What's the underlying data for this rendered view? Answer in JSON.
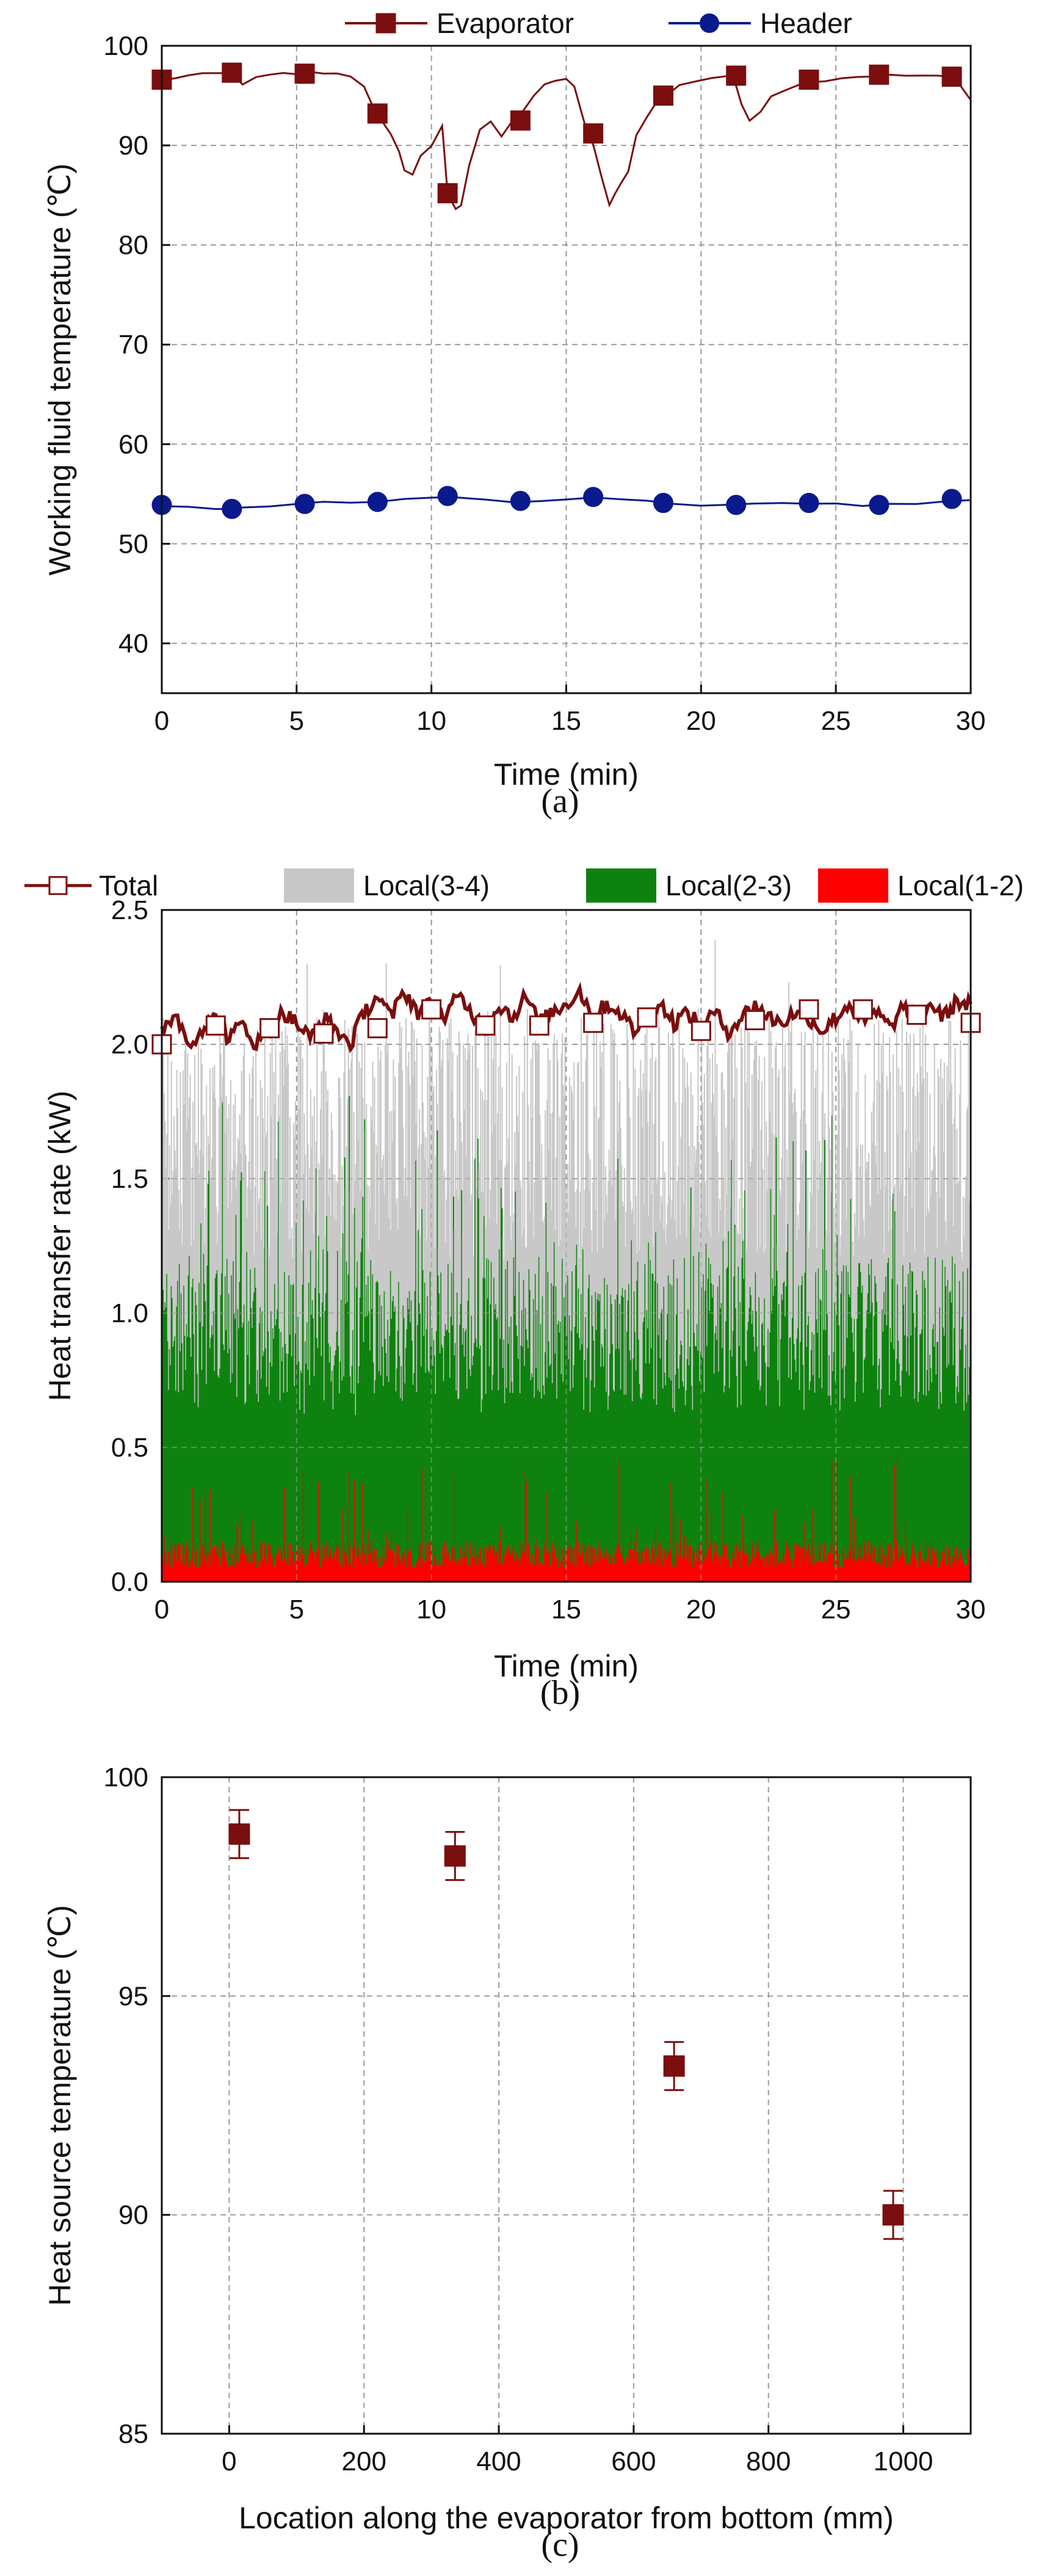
{
  "colors": {
    "evaporator": "#7b0e0e",
    "header": "#0a1a8c",
    "total": "#7b0e0e",
    "local_3_4": "#c8c8c8",
    "local_2_3": "#0e820e",
    "local_1_2": "#ff0000",
    "points_c": "#7b0e0e",
    "grid": "#9a9a9a"
  },
  "chart_data": [
    {
      "type": "line",
      "caption": "(a)",
      "xlabel": "Time (min)",
      "ylabel": "Working fluid temperature (℃)",
      "xlim": [
        0,
        30
      ],
      "ylim": [
        35,
        100
      ],
      "xticks": [
        0,
        5,
        10,
        15,
        20,
        25,
        30
      ],
      "yticks": [
        40,
        50,
        60,
        70,
        80,
        90,
        100
      ],
      "grid": true,
      "legend_position": "top",
      "series": [
        {
          "name": "Evaporator",
          "marker": "square",
          "x": [
            0,
            0.5,
            1,
            1.5,
            2,
            2.5,
            2.7,
            3,
            3.5,
            4,
            4.5,
            5,
            5.5,
            6,
            6.5,
            7,
            7.5,
            7.8,
            8.0,
            8.5,
            8.8,
            9.0,
            9.3,
            9.6,
            10.0,
            10.4,
            10.6,
            10.9,
            11.1,
            11.4,
            11.8,
            12.2,
            12.6,
            13.0,
            13.4,
            13.8,
            14.2,
            14.6,
            15.0,
            15.3,
            15.6,
            15.8,
            16.0,
            16.3,
            16.6,
            16.8,
            17.0,
            17.3,
            17.6,
            18.0,
            18.4,
            18.7,
            19.2,
            19.8,
            20.4,
            21.0,
            21.3,
            21.5,
            21.8,
            22.2,
            22.6,
            23.0,
            23.6,
            24.0,
            24.6,
            25.2,
            25.8,
            26.4,
            27.0,
            27.6,
            28.2,
            28.8,
            29.4,
            30.0
          ],
          "values": [
            96.5,
            96.8,
            97.0,
            97.1,
            97.2,
            97.2,
            97.0,
            96.0,
            96.8,
            97.0,
            97.2,
            97.2,
            97.3,
            97.3,
            97.2,
            97.0,
            96.0,
            94.0,
            93.0,
            91.0,
            89.5,
            87.5,
            87.0,
            89.0,
            90.0,
            92.0,
            85.0,
            83.5,
            84.0,
            88.0,
            91.5,
            92.5,
            91.0,
            92.5,
            93.5,
            95.0,
            96.0,
            96.5,
            96.6,
            96.0,
            93.0,
            91.0,
            90.0,
            87.0,
            84.0,
            85.0,
            86.0,
            87.5,
            91.0,
            93.0,
            94.5,
            95.0,
            96.0,
            96.5,
            96.8,
            97.0,
            96.0,
            94.0,
            92.5,
            93.5,
            95.0,
            95.5,
            96.0,
            96.5,
            96.5,
            96.8,
            96.9,
            97.0,
            97.0,
            97.0,
            97.0,
            96.9,
            96.8,
            94.5
          ],
          "marker_x": [
            0,
            2.6,
            5.3,
            8.0,
            10.6,
            13.3,
            16.0,
            18.6,
            21.3,
            24.0,
            26.6,
            29.3
          ],
          "marker_values": [
            96.6,
            97.3,
            97.2,
            93.2,
            85.2,
            92.5,
            91.2,
            95.0,
            97.0,
            96.6,
            97.1,
            96.9
          ]
        },
        {
          "name": "Header",
          "marker": "circle",
          "x": [
            0,
            1,
            2,
            2.6,
            3,
            4,
            5,
            6,
            7,
            8,
            9,
            10,
            10.6,
            11,
            12,
            13,
            14,
            15,
            16,
            17,
            18,
            19,
            20,
            21,
            22,
            23,
            24,
            25,
            26,
            27,
            28,
            29,
            30
          ],
          "values": [
            53.9,
            53.7,
            53.5,
            53.5,
            53.6,
            53.8,
            54.0,
            54.1,
            54.2,
            54.2,
            54.4,
            54.6,
            54.8,
            54.6,
            54.4,
            54.2,
            54.2,
            54.4,
            54.7,
            54.4,
            54.2,
            54.0,
            53.9,
            53.9,
            54.0,
            54.0,
            54.0,
            54.0,
            53.9,
            53.9,
            54.1,
            54.3,
            54.4
          ],
          "marker_x": [
            0,
            2.6,
            5.3,
            8.0,
            10.6,
            13.3,
            16.0,
            18.6,
            21.3,
            24.0,
            26.6,
            29.3
          ],
          "marker_values": [
            53.9,
            53.5,
            54.0,
            54.2,
            54.8,
            54.3,
            54.7,
            54.1,
            53.9,
            54.1,
            53.9,
            54.5
          ]
        }
      ]
    },
    {
      "type": "area",
      "caption": "(b)",
      "xlabel": "Time (min)",
      "ylabel": "Heat transfer rate (kW)",
      "xlim": [
        0,
        30
      ],
      "ylim": [
        0,
        2.5
      ],
      "xticks": [
        0,
        5,
        10,
        15,
        20,
        25,
        30
      ],
      "yticks": [
        0.0,
        0.5,
        1.0,
        1.5,
        2.0,
        2.5
      ],
      "ytick_labels": [
        "0.0",
        "0.5",
        "1.0",
        "1.5",
        "2.0",
        "2.5"
      ],
      "grid": true,
      "legend_position": "top",
      "series": [
        {
          "name": "Total",
          "marker": "open-square",
          "x": [
            0,
            0.5,
            1,
            1.5,
            2,
            2.5,
            3,
            3.5,
            4,
            4.5,
            5,
            5.5,
            6,
            6.5,
            7,
            7.5,
            8,
            8.5,
            9,
            9.5,
            10,
            10.5,
            11,
            11.5,
            12,
            12.5,
            13,
            13.5,
            14,
            14.5,
            15,
            15.5,
            16,
            16.5,
            17,
            17.5,
            18,
            18.5,
            19,
            19.5,
            20,
            20.5,
            21,
            21.5,
            22,
            22.5,
            23,
            23.5,
            24,
            24.5,
            25,
            25.5,
            26,
            26.5,
            27,
            27.5,
            28,
            28.5,
            29,
            29.5,
            30
          ],
          "values": [
            2.05,
            2.12,
            2.0,
            2.06,
            2.1,
            2.02,
            2.08,
            2.0,
            2.05,
            2.12,
            2.08,
            2.02,
            2.1,
            2.05,
            2.0,
            2.12,
            2.18,
            2.1,
            2.2,
            2.12,
            2.15,
            2.1,
            2.18,
            2.12,
            2.05,
            2.15,
            2.1,
            2.18,
            2.08,
            2.12,
            2.15,
            2.2,
            2.1,
            2.15,
            2.12,
            2.05,
            2.1,
            2.15,
            2.08,
            2.12,
            2.06,
            2.12,
            2.05,
            2.1,
            2.15,
            2.1,
            2.08,
            2.12,
            2.1,
            2.05,
            2.1,
            2.15,
            2.08,
            2.12,
            2.06,
            2.14,
            2.1,
            2.15,
            2.1,
            2.16,
            2.15
          ],
          "marker_x": [
            0,
            2,
            4,
            6,
            8,
            10,
            12,
            14,
            16,
            18,
            20,
            22,
            24,
            26,
            28,
            30
          ],
          "marker_values": [
            2.0,
            2.07,
            2.06,
            2.04,
            2.06,
            2.13,
            2.07,
            2.07,
            2.08,
            2.1,
            2.05,
            2.09,
            2.13,
            2.13,
            2.11,
            2.08
          ]
        },
        {
          "name": "Local(3-4)",
          "typical_range": [
            1.2,
            2.1
          ],
          "max": 2.45
        },
        {
          "name": "Local(2-3)",
          "typical_range": [
            0.8,
            1.2
          ],
          "max": 1.95
        },
        {
          "name": "Local(1-2)",
          "typical_range": [
            0.05,
            0.15
          ],
          "max": 0.5
        }
      ]
    },
    {
      "type": "scatter",
      "caption": "(c)",
      "xlabel": "Location along the evaporator from bottom (mm)",
      "ylabel": "Heat source temperature (℃)",
      "xlim": [
        -100,
        1100
      ],
      "ylim": [
        85,
        100
      ],
      "xticks": [
        0,
        200,
        400,
        600,
        800,
        1000
      ],
      "yticks": [
        85,
        90,
        95,
        100
      ],
      "grid": true,
      "series": [
        {
          "marker": "square",
          "x": [
            15,
            335,
            660,
            985
          ],
          "values": [
            98.7,
            98.2,
            93.4,
            90.0
          ],
          "error": [
            0.55,
            0.55,
            0.55,
            0.55
          ]
        }
      ]
    }
  ]
}
